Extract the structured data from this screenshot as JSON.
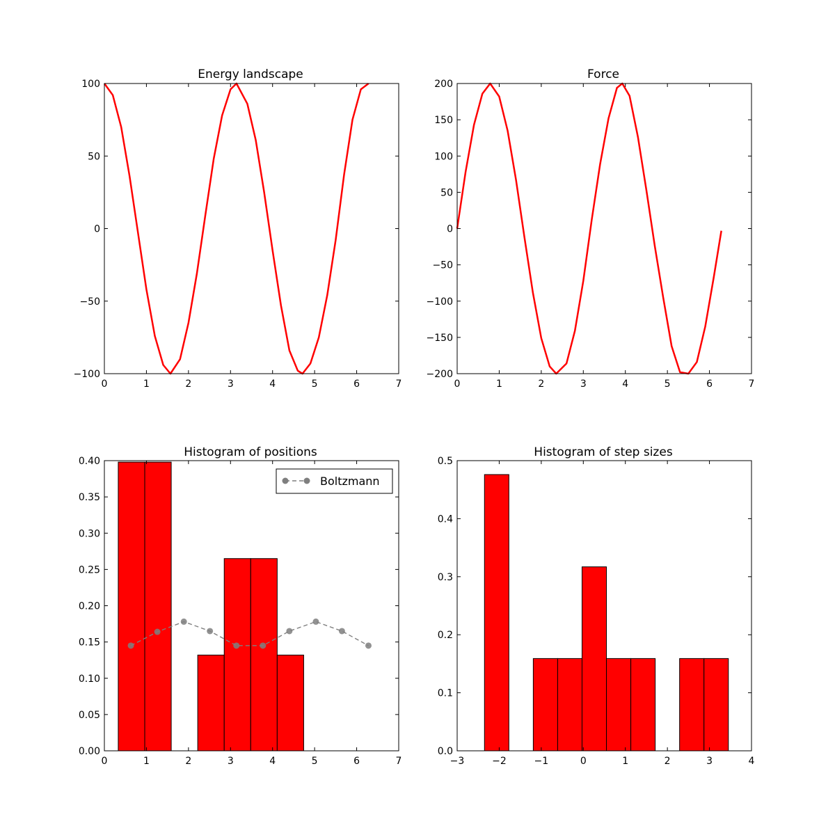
{
  "chart_data": [
    {
      "type": "line",
      "title": "Energy landscape",
      "xlabel": "",
      "ylabel": "",
      "xlim": [
        0,
        7
      ],
      "ylim": [
        -100,
        100
      ],
      "xticks": [
        "0",
        "1",
        "2",
        "3",
        "4",
        "5",
        "6",
        "7"
      ],
      "yticks": [
        "−100",
        "−50",
        "0",
        "50",
        "100"
      ],
      "series": [
        {
          "color": "#ff0000",
          "x": [
            0,
            0.2,
            0.4,
            0.6,
            0.8,
            1.0,
            1.2,
            1.4,
            1.571,
            1.8,
            2.0,
            2.2,
            2.4,
            2.6,
            2.8,
            3.0,
            3.142,
            3.4,
            3.6,
            3.8,
            4.0,
            4.2,
            4.4,
            4.6,
            4.712,
            4.9,
            5.1,
            5.3,
            5.5,
            5.7,
            5.9,
            6.1,
            6.283
          ],
          "y": [
            100,
            92,
            70,
            36,
            -3,
            -42,
            -74,
            -94,
            -100,
            -90,
            -65,
            -31,
            9,
            48,
            78,
            96,
            100,
            86,
            61,
            25,
            -15,
            -53,
            -84,
            -98,
            -100,
            -93,
            -75,
            -46,
            -8,
            37,
            75,
            96,
            100
          ]
        }
      ]
    },
    {
      "type": "line",
      "title": "Force",
      "xlabel": "",
      "ylabel": "",
      "xlim": [
        0,
        7
      ],
      "ylim": [
        -200,
        200
      ],
      "xticks": [
        "0",
        "1",
        "2",
        "3",
        "4",
        "5",
        "6",
        "7"
      ],
      "yticks": [
        "−200",
        "−150",
        "−100",
        "−50",
        "0",
        "50",
        "100",
        "150",
        "200"
      ],
      "series": [
        {
          "color": "#ff0000",
          "x": [
            0,
            0.2,
            0.4,
            0.6,
            0.785,
            1.0,
            1.2,
            1.4,
            1.6,
            1.8,
            2.0,
            2.2,
            2.356,
            2.6,
            2.8,
            3.0,
            3.2,
            3.4,
            3.6,
            3.8,
            3.927,
            4.1,
            4.3,
            4.5,
            4.7,
            4.9,
            5.1,
            5.3,
            5.498,
            5.7,
            5.9,
            6.1,
            6.283
          ],
          "y": [
            0,
            78,
            143,
            186,
            200,
            182,
            135,
            67,
            -12,
            -88,
            -151,
            -190,
            -200,
            -186,
            -141,
            -72,
            12,
            89,
            152,
            194,
            200,
            183,
            126,
            53,
            -24,
            -95,
            -162,
            -198,
            -200,
            -184,
            -135,
            -68,
            -3
          ]
        }
      ]
    },
    {
      "type": "bar",
      "title": "Histogram of positions",
      "xlabel": "",
      "ylabel": "",
      "xlim": [
        0,
        7
      ],
      "ylim": [
        0,
        0.4
      ],
      "xticks": [
        "0",
        "1",
        "2",
        "3",
        "4",
        "5",
        "6",
        "7"
      ],
      "yticks": [
        "0.00",
        "0.05",
        "0.10",
        "0.15",
        "0.20",
        "0.25",
        "0.30",
        "0.35",
        "0.40"
      ],
      "bins": [
        {
          "x0": 0.33,
          "x1": 0.96,
          "value": 0.398
        },
        {
          "x0": 0.96,
          "x1": 1.59,
          "value": 0.398
        },
        {
          "x0": 1.59,
          "x1": 2.22,
          "value": 0
        },
        {
          "x0": 2.22,
          "x1": 2.85,
          "value": 0.132
        },
        {
          "x0": 2.85,
          "x1": 3.48,
          "value": 0.265
        },
        {
          "x0": 3.48,
          "x1": 4.11,
          "value": 0.265
        },
        {
          "x0": 4.11,
          "x1": 4.74,
          "value": 0.132
        }
      ],
      "bar_color": "#ff0000",
      "series": [
        {
          "name": "Boltzmann",
          "color": "#7f7f7f",
          "x": [
            0.63,
            1.26,
            1.89,
            2.51,
            3.14,
            3.77,
            4.4,
            5.03,
            5.65,
            6.28
          ],
          "y": [
            0.145,
            0.164,
            0.178,
            0.165,
            0.145,
            0.145,
            0.165,
            0.178,
            0.165,
            0.145
          ]
        }
      ],
      "legend": {
        "entries": [
          "Boltzmann"
        ],
        "position": "upper right"
      }
    },
    {
      "type": "bar",
      "title": "Histogram of step sizes",
      "xlabel": "",
      "ylabel": "",
      "xlim": [
        -3,
        4
      ],
      "ylim": [
        0,
        0.5
      ],
      "xticks": [
        "−3",
        "−2",
        "−1",
        "0",
        "1",
        "2",
        "3",
        "4"
      ],
      "yticks": [
        "0.0",
        "0.1",
        "0.2",
        "0.3",
        "0.4",
        "0.5"
      ],
      "bins": [
        {
          "x0": -2.35,
          "x1": -1.77,
          "value": 0.476
        },
        {
          "x0": -1.77,
          "x1": -1.19,
          "value": 0
        },
        {
          "x0": -1.19,
          "x1": -0.61,
          "value": 0.159
        },
        {
          "x0": -0.61,
          "x1": -0.03,
          "value": 0.159
        },
        {
          "x0": -0.03,
          "x1": 0.55,
          "value": 0.317
        },
        {
          "x0": 0.55,
          "x1": 1.13,
          "value": 0.159
        },
        {
          "x0": 1.13,
          "x1": 1.71,
          "value": 0.159
        },
        {
          "x0": 1.71,
          "x1": 2.29,
          "value": 0
        },
        {
          "x0": 2.29,
          "x1": 2.87,
          "value": 0.159
        },
        {
          "x0": 2.87,
          "x1": 3.45,
          "value": 0.159
        }
      ],
      "bar_color": "#ff0000"
    }
  ]
}
